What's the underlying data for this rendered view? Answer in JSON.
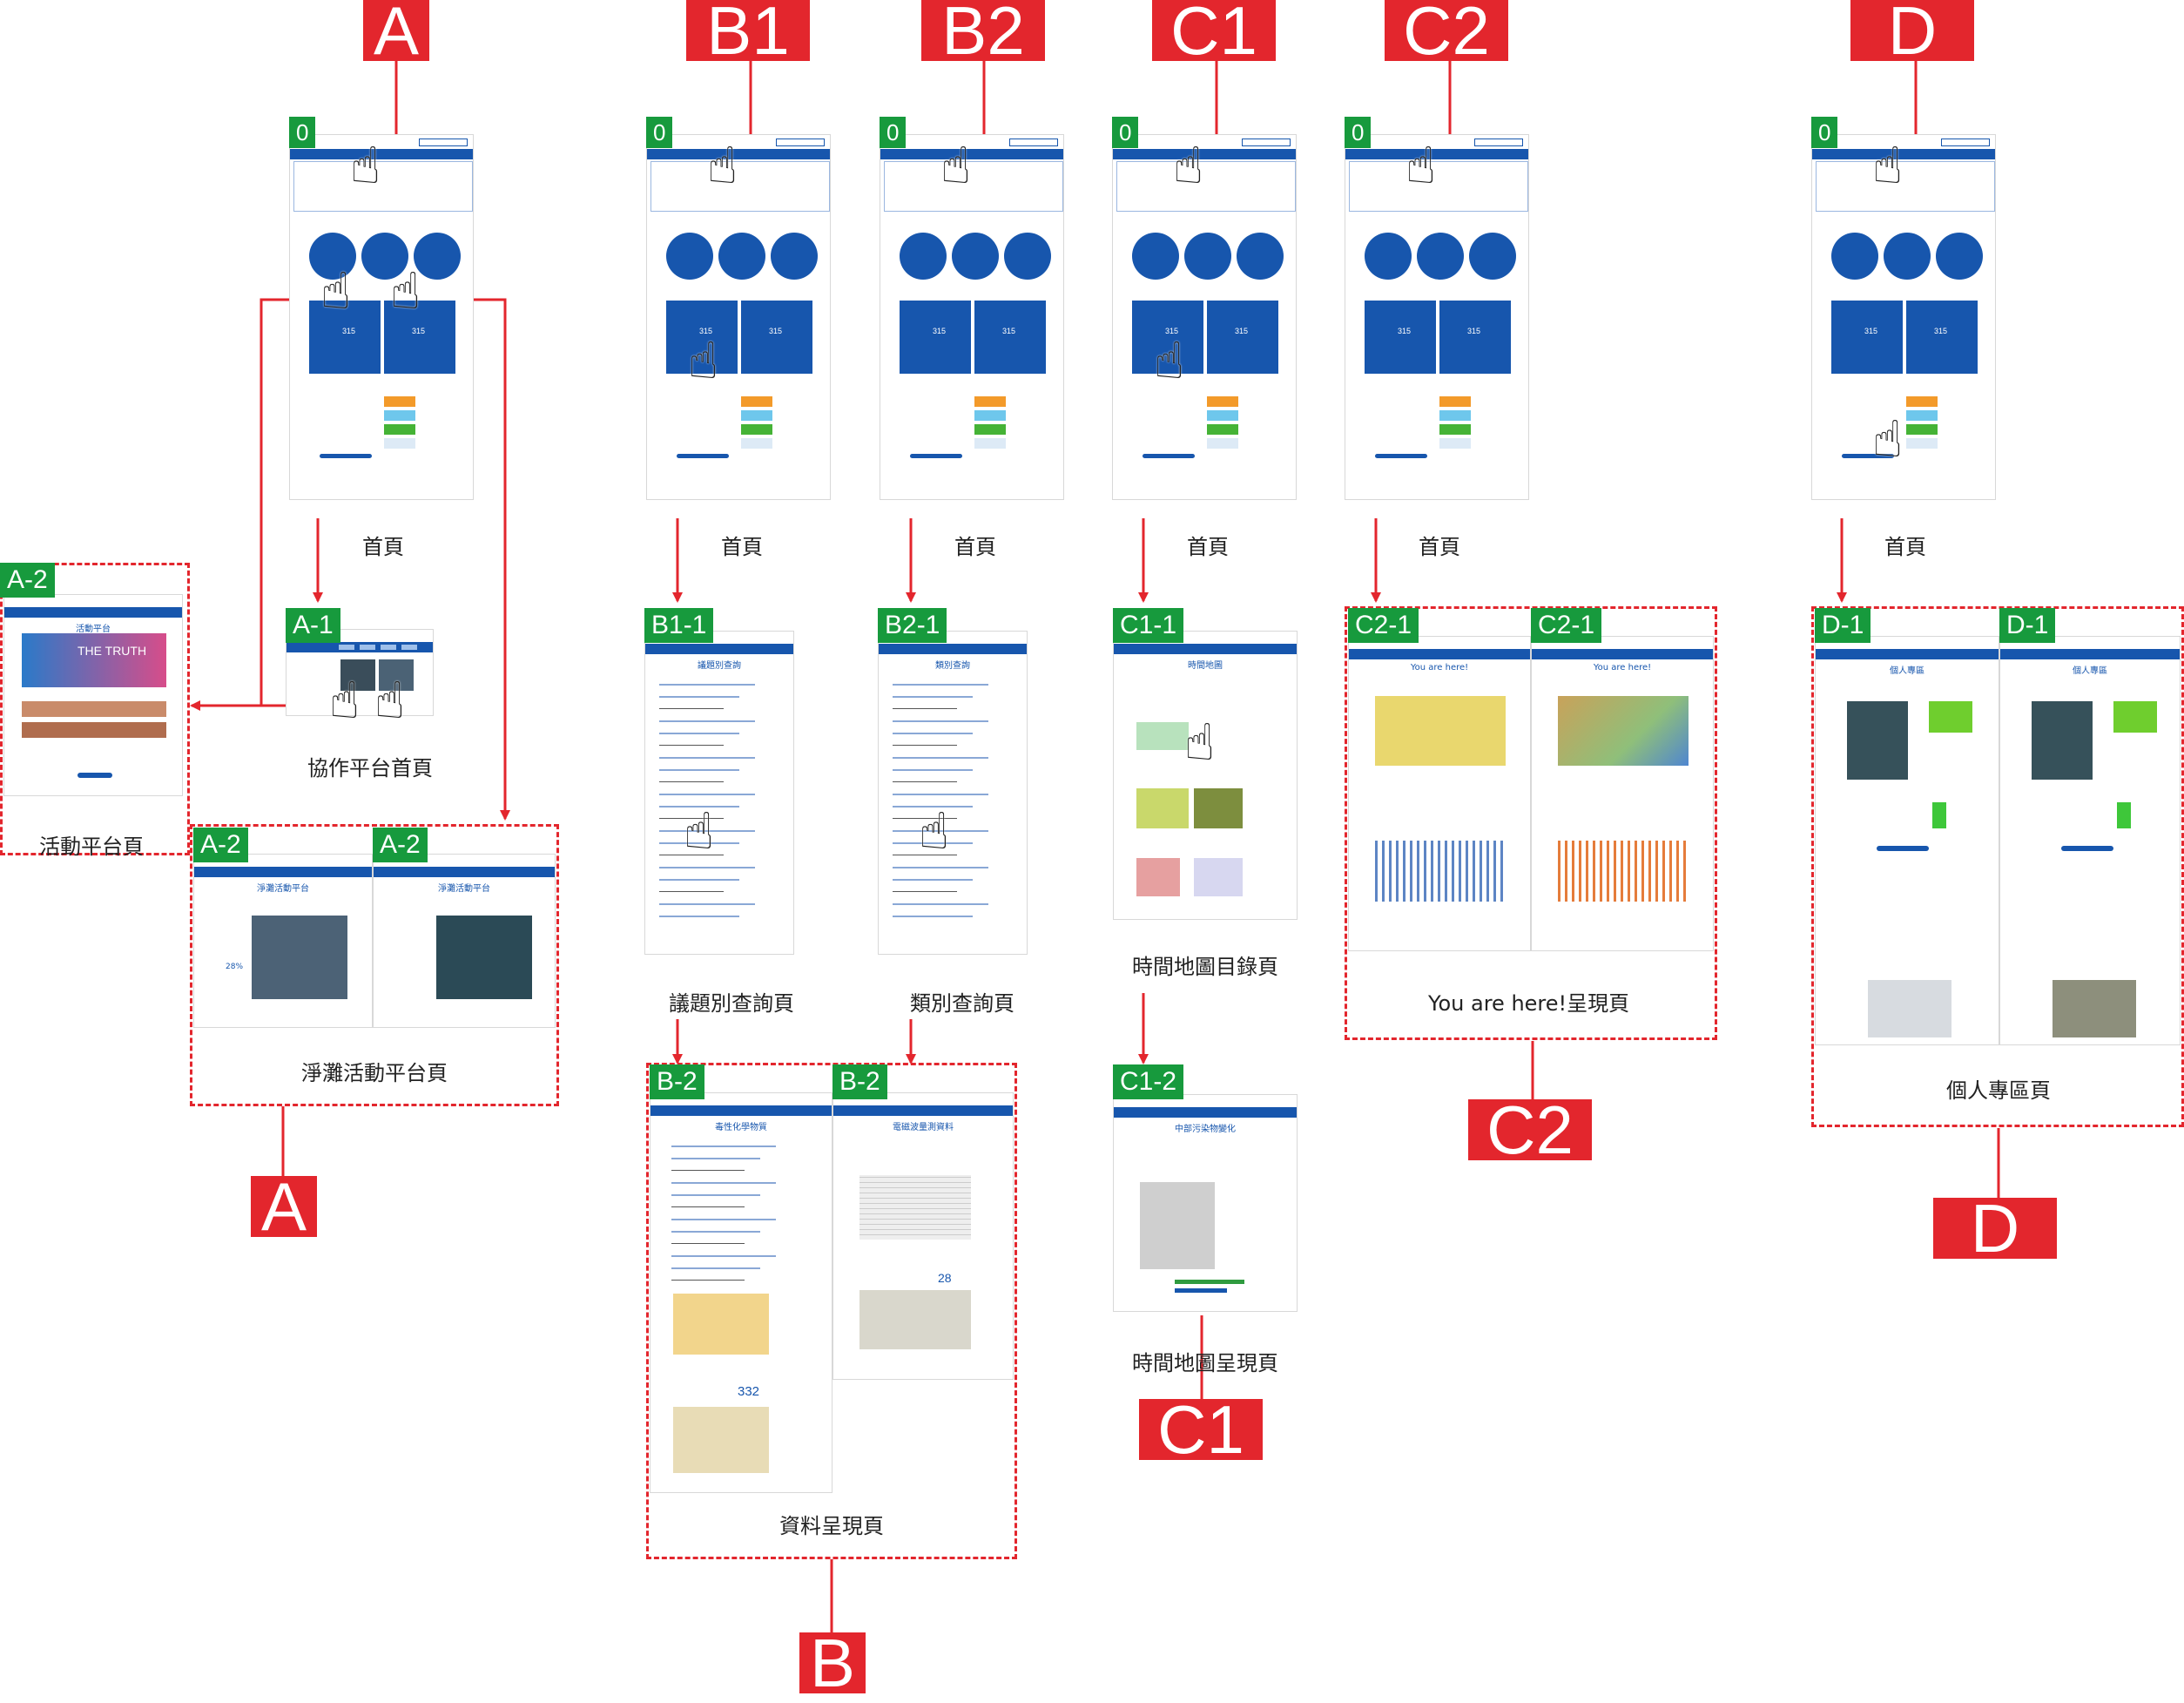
{
  "labels": {
    "A_top": "A",
    "B1_top": "B1",
    "B2_top": "B2",
    "C1_top": "C1",
    "C2_top": "C2",
    "D_top": "D",
    "A_bottom": "A",
    "B_bottom": "B",
    "C1_bottom": "C1",
    "C2_bottom": "C2",
    "D_bottom": "D"
  },
  "tags": {
    "zero": "0",
    "a1": "A-1",
    "a2": "A-2",
    "b11": "B1-1",
    "b21": "B2-1",
    "b2": "B-2",
    "c11": "C1-1",
    "c12": "C1-2",
    "c21": "C2-1",
    "d1": "D-1"
  },
  "captions": {
    "home": "首頁",
    "a1": "協作平台首頁",
    "a2_left": "活動平台頁",
    "a2": "淨灘活動平台頁",
    "b11": "議題別查詢頁",
    "b21": "類別查詢頁",
    "b2": "資料呈現頁",
    "c11": "時間地圖目錄頁",
    "c12": "時間地圖呈現頁",
    "c2": "You are here!呈現頁",
    "d1": "個人專區頁"
  },
  "thumb_text": {
    "activity": "活動平台",
    "beach": "淨灘活動平台",
    "issue": "議題別查詢",
    "category": "類別查詢",
    "timemap": "時間地圖",
    "chem": "毒性化學物質",
    "power": "電磁波量測資料",
    "pollution": "中部污染物變化",
    "here": "You are here!",
    "personal": "個人專區",
    "num315": "315",
    "num28": "28",
    "num332": "332",
    "num28pct": "28%",
    "truth": "THE TRUTH"
  },
  "colors": {
    "red": "#e3262d",
    "green": "#179a3d",
    "blue": "#1756ad"
  }
}
